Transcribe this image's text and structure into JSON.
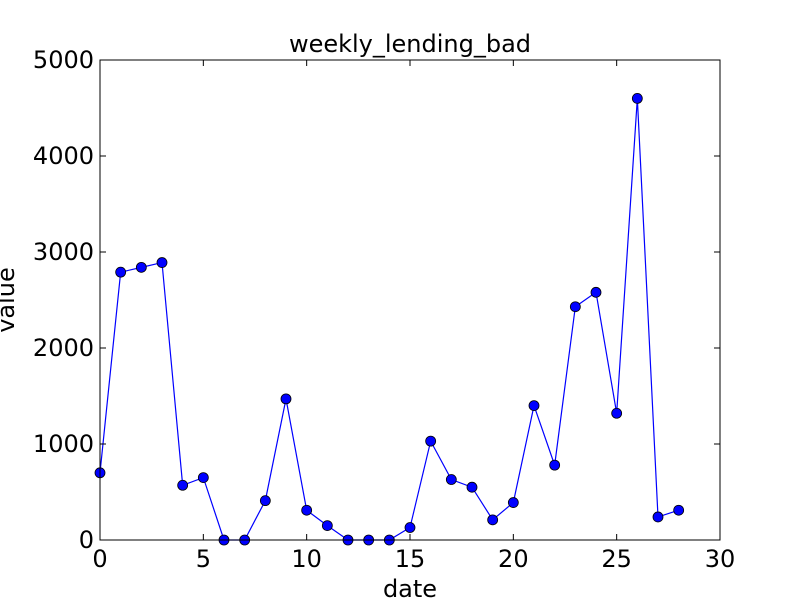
{
  "chart_data": {
    "type": "line",
    "title": "weekly_lending_bad",
    "xlabel": "date",
    "ylabel": "value",
    "xlim": [
      0,
      30
    ],
    "ylim": [
      0,
      5000
    ],
    "xticks": [
      0,
      5,
      10,
      15,
      20,
      25,
      30
    ],
    "yticks": [
      0,
      1000,
      2000,
      3000,
      4000,
      5000
    ],
    "grid": false,
    "line_color": "#0000ff",
    "marker_color": "#0000ff",
    "series": [
      {
        "x": [
          0,
          1,
          2,
          3,
          4,
          5,
          6,
          7,
          8,
          9,
          10,
          11,
          12,
          13,
          14,
          15,
          16,
          17,
          18,
          19,
          20,
          21,
          22,
          23,
          24,
          25,
          26,
          27,
          28
        ],
        "values": [
          700,
          2790,
          2840,
          2890,
          570,
          650,
          0,
          0,
          410,
          1470,
          310,
          150,
          0,
          0,
          0,
          130,
          1030,
          630,
          550,
          210,
          390,
          1400,
          780,
          2430,
          2580,
          1320,
          4600,
          240,
          310
        ]
      }
    ]
  }
}
